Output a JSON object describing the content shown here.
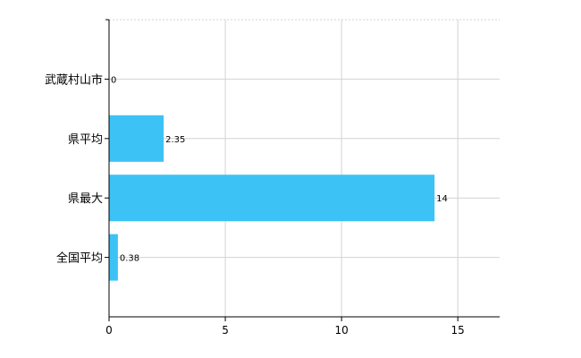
{
  "chart_data": {
    "type": "bar",
    "orientation": "horizontal",
    "title": "",
    "xlabel": "",
    "ylabel": "",
    "categories": [
      "武蔵村山市",
      "県平均",
      "県最大",
      "全国平均"
    ],
    "values": [
      0,
      2.35,
      14,
      0.38
    ],
    "value_labels": [
      "0",
      "2.35",
      "14",
      "0.38"
    ],
    "xlim": [
      0,
      16.8
    ],
    "xticks": [
      0,
      5,
      10,
      15
    ],
    "xtick_labels": [
      "0",
      "5",
      "10",
      "15"
    ],
    "grid": true,
    "legend": "none",
    "bar_color": "#3dc2f5"
  }
}
